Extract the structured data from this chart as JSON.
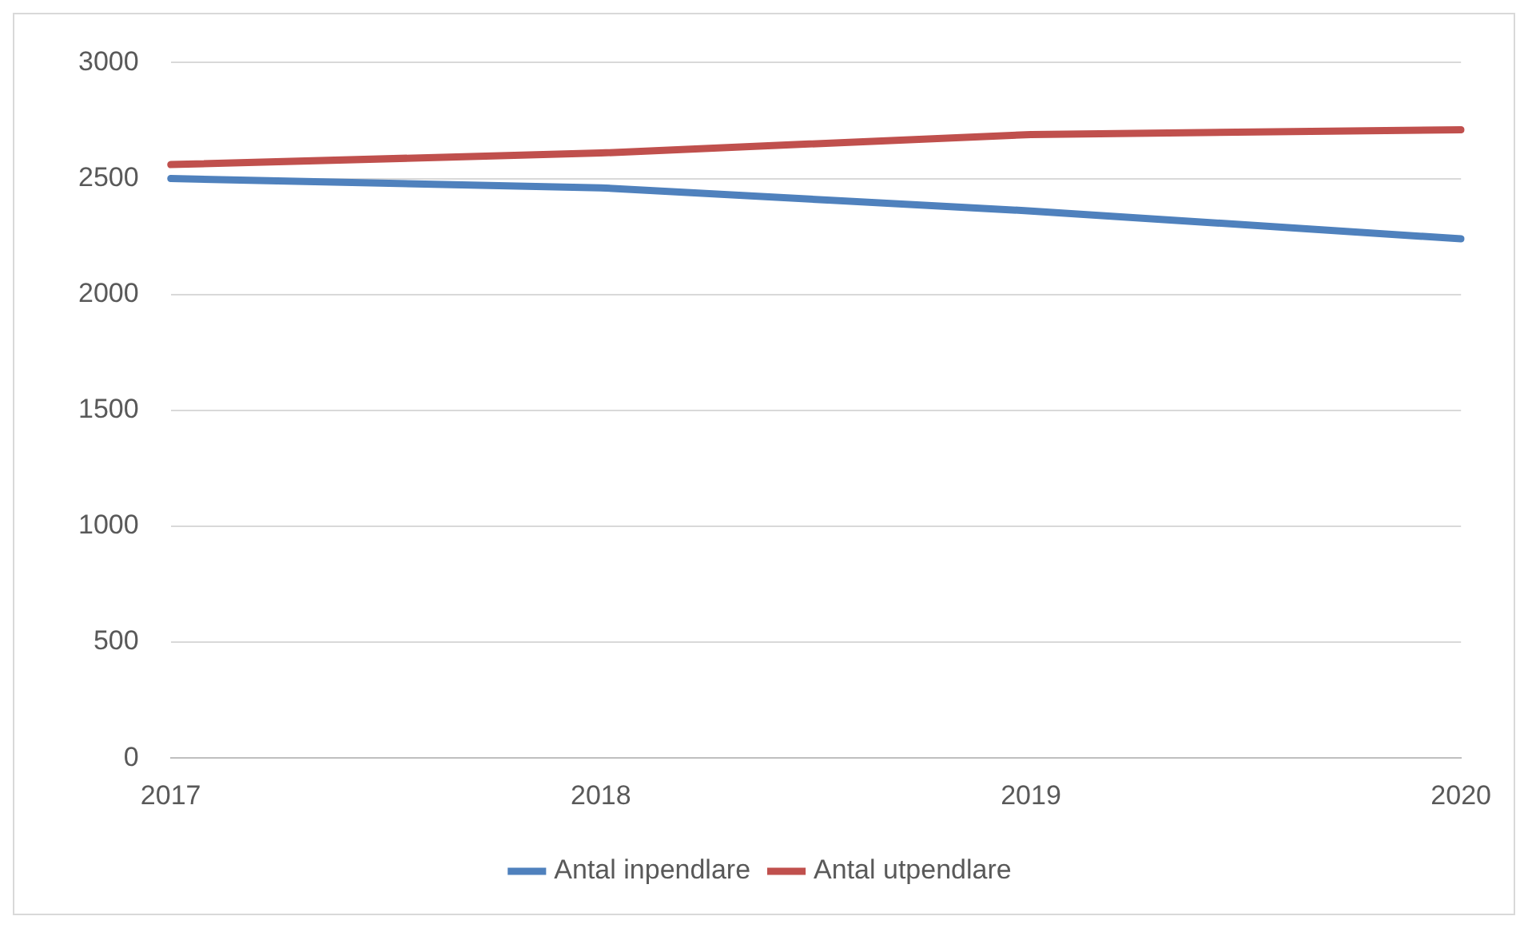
{
  "chart_data": {
    "type": "line",
    "categories": [
      "2017",
      "2018",
      "2019",
      "2020"
    ],
    "series": [
      {
        "name": "Antal inpendlare",
        "color": "#4f81bd",
        "values": [
          2500,
          2460,
          2360,
          2240
        ]
      },
      {
        "name": "Antal utpendlare",
        "color": "#c0504d",
        "values": [
          2560,
          2610,
          2690,
          2710
        ]
      }
    ],
    "ylim": [
      0,
      3000
    ],
    "yticks": [
      0,
      500,
      1000,
      1500,
      2000,
      2500,
      3000
    ],
    "grid": "y",
    "legend": "bottom",
    "marker": "none",
    "line_style": "solid"
  }
}
